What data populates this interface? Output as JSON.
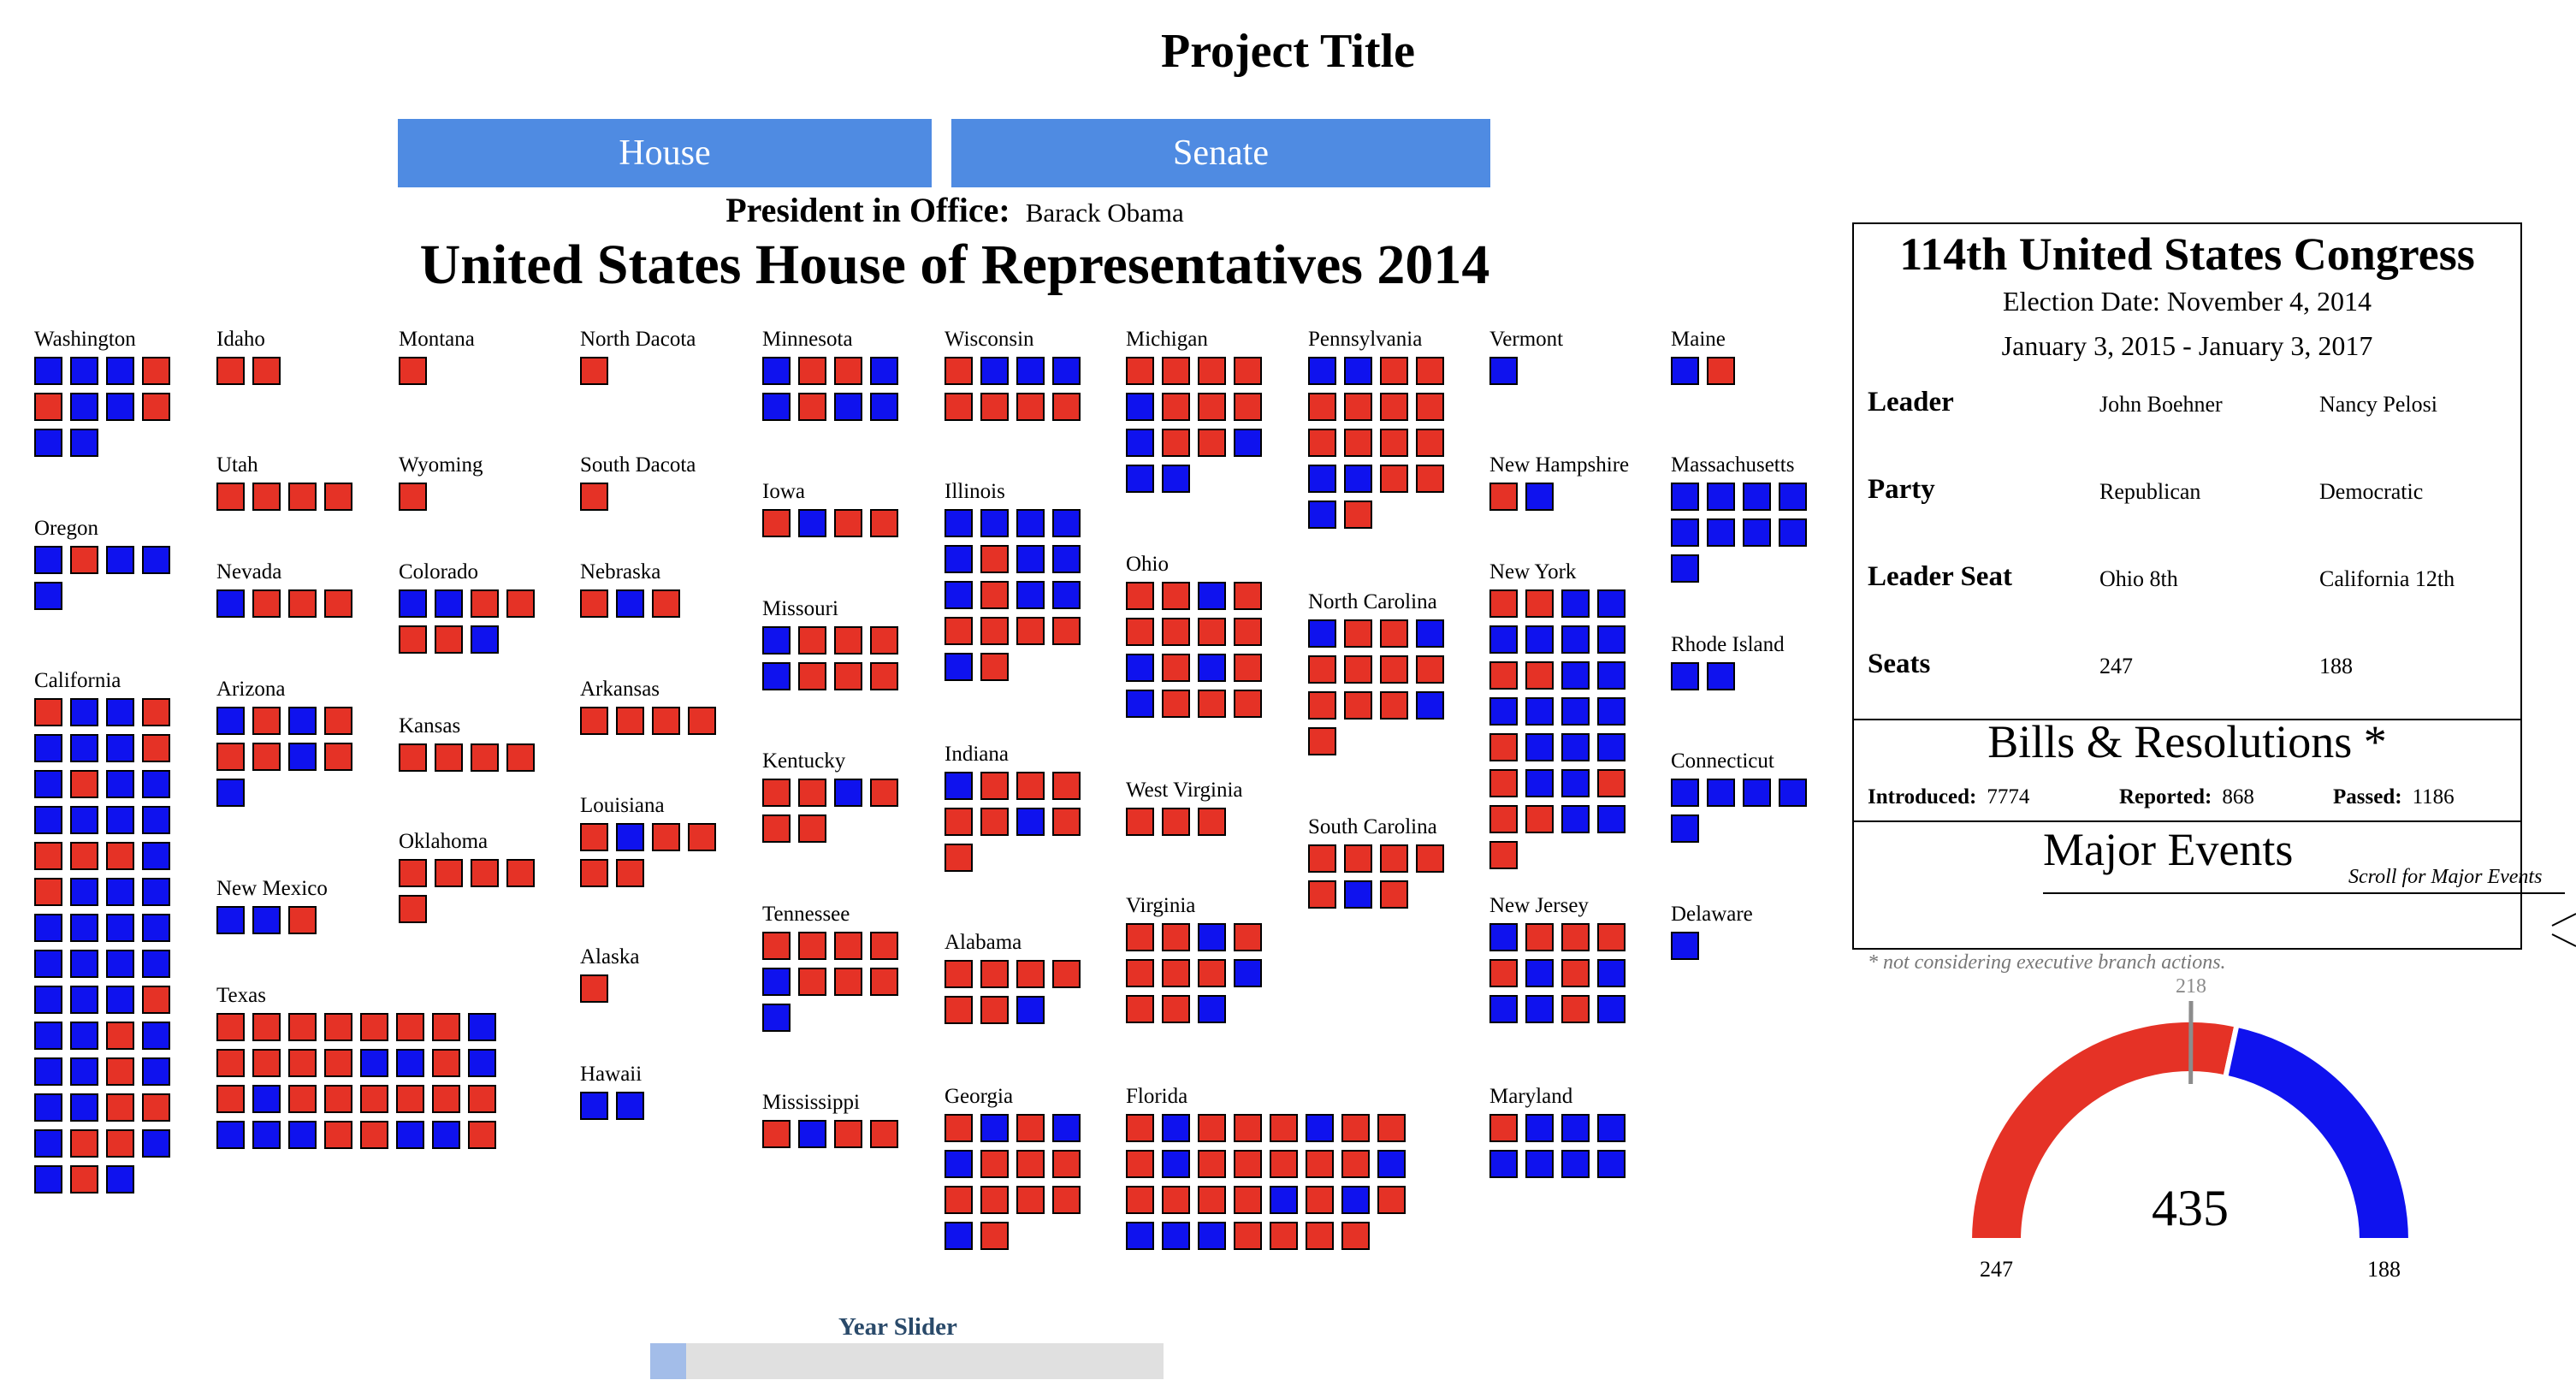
{
  "page": {
    "project_title": "Project Title",
    "house_button": "House",
    "senate_button": "Senate",
    "president_label": "President in Office:",
    "president_name": "Barack Obama",
    "chart_title": "United States House of Representatives 2014",
    "slider_label": "Year Slider",
    "slider_value_fraction": 0.07
  },
  "info": {
    "congress": "114th United States Congress",
    "election_date": "Election Date: November 4, 2014",
    "term": "January 3, 2015 - January 3, 2017",
    "rows": [
      {
        "key": "Leader",
        "r": "John Boehner",
        "d": "Nancy Pelosi"
      },
      {
        "key": "Party",
        "r": "Republican",
        "d": "Democratic"
      },
      {
        "key": "Leader Seat",
        "r": "Ohio 8th",
        "d": "California 12th"
      },
      {
        "key": "Seats",
        "r": "247",
        "d": "188"
      }
    ],
    "bills_title": "Bills & Resolutions *",
    "bills": [
      {
        "label": "Introduced:",
        "value": "7774"
      },
      {
        "label": "Reported:",
        "value": "868"
      },
      {
        "label": "Passed:",
        "value": "1186"
      }
    ],
    "events_title": "Major Events",
    "events_hint": "Scroll for Major Events",
    "footnote": "* not considering executive branch actions."
  },
  "colors": {
    "republican": "#e53226",
    "democratic": "#0f12ee",
    "button": "#4f8be2"
  },
  "chart_data": [
    {
      "type": "table",
      "title": "United States House of Representatives 2014",
      "legend": {
        "R": "Republican",
        "D": "Democratic"
      },
      "states": [
        {
          "name": "Washington",
          "seats": "DDDRRDDRDD"
        },
        {
          "name": "Oregon",
          "seats": "DRDDD"
        },
        {
          "name": "California",
          "seats": "RDDRDDDRDRDDDDDDRRRDRDDDDDDDDDDDDDDRDDRDDDRDDDRRDRRDDRD"
        },
        {
          "name": "Idaho",
          "seats": "RR"
        },
        {
          "name": "Utah",
          "seats": "RRRR"
        },
        {
          "name": "Nevada",
          "seats": "DRRR"
        },
        {
          "name": "Arizona",
          "seats": "DRDRRRDRD"
        },
        {
          "name": "New Mexico",
          "seats": "DDR"
        },
        {
          "name": "Texas",
          "seats": "RRRRRRRDRRRRDDRDRDRRRRRRDDDRRDDR"
        },
        {
          "name": "Montana",
          "seats": "R"
        },
        {
          "name": "Wyoming",
          "seats": "R"
        },
        {
          "name": "Colorado",
          "seats": "DDRRRRD"
        },
        {
          "name": "Kansas",
          "seats": "RRRR"
        },
        {
          "name": "Oklahoma",
          "seats": "RRRR R"
        },
        {
          "name": "North Dacota",
          "seats": "R"
        },
        {
          "name": "South Dacota",
          "seats": "R"
        },
        {
          "name": "Nebraska",
          "seats": "RDR"
        },
        {
          "name": "Arkansas",
          "seats": "RRRR"
        },
        {
          "name": "Louisiana",
          "seats": "RDRRRR"
        },
        {
          "name": "Alaska",
          "seats": "R"
        },
        {
          "name": "Hawaii",
          "seats": "DD"
        },
        {
          "name": "Minnesota",
          "seats": "DRRDDRDD"
        },
        {
          "name": "Iowa",
          "seats": "RDRR"
        },
        {
          "name": "Missouri",
          "seats": "DRRRDRRR"
        },
        {
          "name": "Kentucky",
          "seats": "RRDRRR"
        },
        {
          "name": "Tennessee",
          "seats": "RRRRDRRRD"
        },
        {
          "name": "Mississippi",
          "seats": "RDRR"
        },
        {
          "name": "Wisconsin",
          "seats": "RDDDRRRR"
        },
        {
          "name": "Illinois",
          "seats": "DDDDDRDDDRDDRRRRDR"
        },
        {
          "name": "Indiana",
          "seats": "DRRRRRDRR"
        },
        {
          "name": "Alabama",
          "seats": "RRRRRRD"
        },
        {
          "name": "Georgia",
          "seats": "RDRDDRRRRRRRDR"
        },
        {
          "name": "Michigan",
          "seats": "RRRRDRRRDRRDDD"
        },
        {
          "name": "Ohio",
          "seats": "RRDRRRRRDRDRDRRR"
        },
        {
          "name": "West Virginia",
          "seats": "RRR"
        },
        {
          "name": "Virginia",
          "seats": "RRDRRRRDRRD"
        },
        {
          "name": "Florida",
          "seats": "RDRRRDRRRDRRRRRDRRRRDRDRDDDRRRR"
        },
        {
          "name": "Pennsylvania",
          "seats": "DDRRRRRRRRRRDDRRDR"
        },
        {
          "name": "North Carolina",
          "seats": "DRRDRRRRRRRDR"
        },
        {
          "name": "South Carolina",
          "seats": "RRRRRDR"
        },
        {
          "name": "Vermont",
          "seats": "D"
        },
        {
          "name": "New Hampshire",
          "seats": "RD"
        },
        {
          "name": "New York",
          "seats": "RRDDDDDDRRDDDDDDRDDDRDDRRRDDR"
        },
        {
          "name": "New Jersey",
          "seats": "DRRRRDRDDDRD"
        },
        {
          "name": "Maryland",
          "seats": "RDDDDDDD"
        },
        {
          "name": "Maine",
          "seats": "DR"
        },
        {
          "name": "Massachusetts",
          "seats": "DDDDDDDDD"
        },
        {
          "name": "Rhode Island",
          "seats": "DD"
        },
        {
          "name": "Connecticut",
          "seats": "DDDDD"
        },
        {
          "name": "Delaware",
          "seats": "D"
        }
      ]
    },
    {
      "type": "pie",
      "title": "",
      "total": 435,
      "majority": 218,
      "series": [
        {
          "name": "",
          "label": "247",
          "value": 247,
          "color": "#e53226"
        },
        {
          "name": "",
          "label": "188",
          "value": 188,
          "color": "#0f12ee"
        }
      ]
    }
  ]
}
